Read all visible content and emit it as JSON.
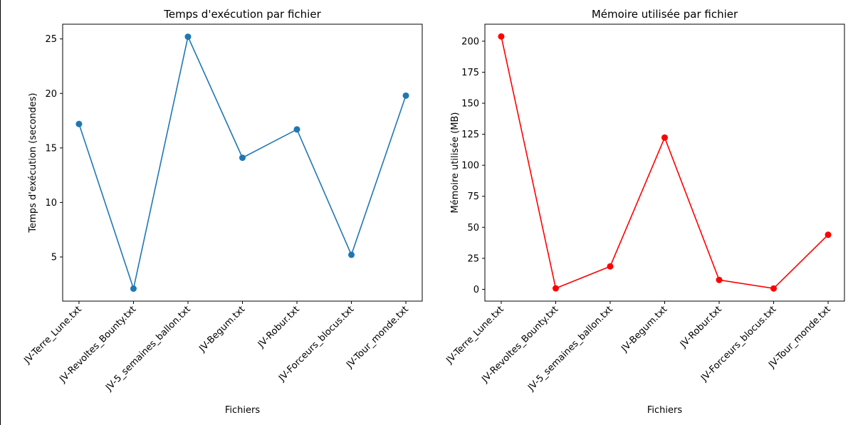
{
  "chart_data": [
    {
      "type": "line",
      "title": "Temps d'exécution par fichier",
      "xlabel": "Fichiers",
      "ylabel": "Temps d'exécution (secondes)",
      "categories": [
        "JV-Terre_Lune.txt",
        "JV-Revoltes_Bounty.txt",
        "JV-5_semaines_ballon.txt",
        "JV-Begum.txt",
        "JV-Robur.txt",
        "JV-Forceurs_blocus.txt",
        "JV-Tour_monde.txt"
      ],
      "series": [
        {
          "values": [
            17.2,
            2.1,
            25.2,
            14.1,
            16.7,
            5.2,
            19.8
          ],
          "color": "#1f77b4"
        }
      ],
      "yticks": [
        5,
        10,
        15,
        20,
        25
      ],
      "ylim": [
        0.95,
        26.35
      ],
      "grid": false,
      "marker": "circle"
    },
    {
      "type": "line",
      "title": "Mémoire utilisée par fichier",
      "xlabel": "Fichiers",
      "ylabel": "Mémoire utilisée (MB)",
      "categories": [
        "JV-Terre_Lune.txt",
        "JV-Revoltes_Bounty.txt",
        "JV-5_semaines_ballon.txt",
        "JV-Begum.txt",
        "JV-Robur.txt",
        "JV-Forceurs_blocus.txt",
        "JV-Tour_monde.txt"
      ],
      "series": [
        {
          "values": [
            203.8,
            0.8,
            18.5,
            122.3,
            7.6,
            0.7,
            44.0
          ],
          "color": "#ff0000"
        }
      ],
      "yticks": [
        0,
        25,
        50,
        75,
        100,
        125,
        150,
        175,
        200
      ],
      "ylim": [
        -9.5,
        213.7
      ],
      "grid": false,
      "marker": "circle"
    }
  ]
}
